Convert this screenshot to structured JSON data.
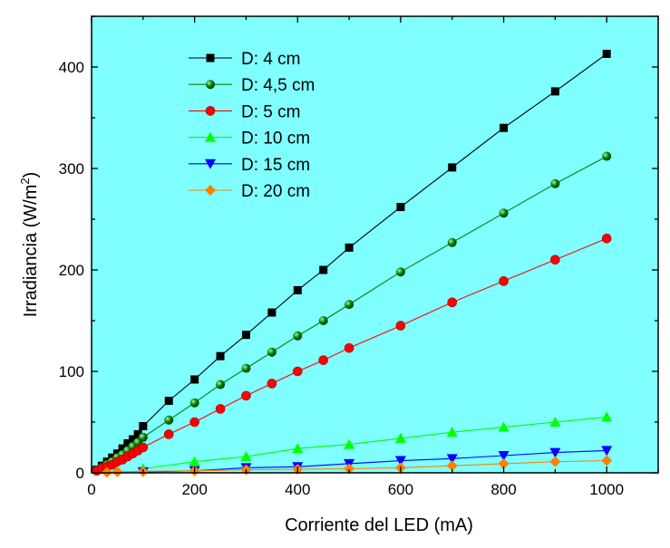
{
  "chart_data": {
    "type": "line",
    "title": "",
    "xlabel": "Corriente del LED (mA)",
    "ylabel_main": "Irradiancia (W/m",
    "ylabel_sup": "2",
    "ylabel_close": ")",
    "xlim": [
      0,
      1100
    ],
    "ylim": [
      0,
      450
    ],
    "x_ticks": [
      0,
      200,
      400,
      600,
      800,
      1000
    ],
    "y_ticks": [
      0,
      100,
      200,
      300,
      400
    ],
    "x_tick_labels": [
      "0",
      "200",
      "400",
      "600",
      "800",
      "1000"
    ],
    "y_tick_labels": [
      "0",
      "100",
      "200",
      "300",
      "400"
    ],
    "plot_background": "#7fffff",
    "grid": false,
    "legend_position": "top-left",
    "series": [
      {
        "name": "D: 4 cm",
        "color": "#000000",
        "marker": "square",
        "x": [
          10,
          20,
          30,
          40,
          50,
          60,
          70,
          80,
          90,
          100,
          150,
          200,
          250,
          300,
          350,
          400,
          450,
          500,
          600,
          700,
          800,
          900,
          1000
        ],
        "y": [
          3,
          7,
          11,
          15,
          19,
          24,
          29,
          33,
          38,
          46,
          71,
          92,
          115,
          136,
          158,
          180,
          200,
          222,
          262,
          301,
          340,
          376,
          413
        ]
      },
      {
        "name": "D: 4,5 cm",
        "color": "#008000",
        "marker": "sphere",
        "x": [
          10,
          20,
          30,
          40,
          50,
          60,
          70,
          80,
          90,
          100,
          150,
          200,
          250,
          300,
          350,
          400,
          450,
          500,
          600,
          700,
          800,
          900,
          1000
        ],
        "y": [
          2,
          5,
          8,
          11,
          15,
          18,
          22,
          26,
          30,
          35,
          52,
          69,
          87,
          103,
          119,
          135,
          150,
          166,
          198,
          227,
          256,
          285,
          312
        ]
      },
      {
        "name": "D: 5 cm",
        "color": "#ff0000",
        "marker": "circle",
        "x": [
          10,
          20,
          30,
          40,
          50,
          60,
          70,
          80,
          90,
          100,
          150,
          200,
          250,
          300,
          350,
          400,
          450,
          500,
          600,
          700,
          800,
          900,
          1000
        ],
        "y": [
          2,
          4,
          6,
          8,
          11,
          13,
          16,
          19,
          22,
          25,
          38,
          50,
          63,
          76,
          88,
          100,
          111,
          123,
          145,
          168,
          189,
          210,
          231
        ]
      },
      {
        "name": "D: 10 cm",
        "color": "#00ff00",
        "marker": "triangle-up",
        "x": [
          100,
          200,
          300,
          400,
          500,
          600,
          700,
          800,
          900,
          1000
        ],
        "y": [
          4,
          11,
          16,
          24,
          28,
          34,
          40,
          45,
          50,
          55
        ]
      },
      {
        "name": "D: 15 cm",
        "color": "#0000ff",
        "marker": "triangle-down",
        "x": [
          100,
          200,
          300,
          400,
          500,
          600,
          700,
          800,
          900,
          1000
        ],
        "y": [
          1,
          2,
          5,
          6,
          9,
          12,
          14,
          17,
          20,
          22
        ]
      },
      {
        "name": "D: 20 cm",
        "color": "#ff8000",
        "marker": "diamond",
        "x": [
          30,
          50,
          100,
          200,
          300,
          400,
          500,
          600,
          700,
          800,
          900,
          1000
        ],
        "y": [
          0.5,
          1,
          1.5,
          2,
          3,
          3.5,
          4,
          5,
          7,
          9,
          11,
          12
        ]
      }
    ]
  }
}
